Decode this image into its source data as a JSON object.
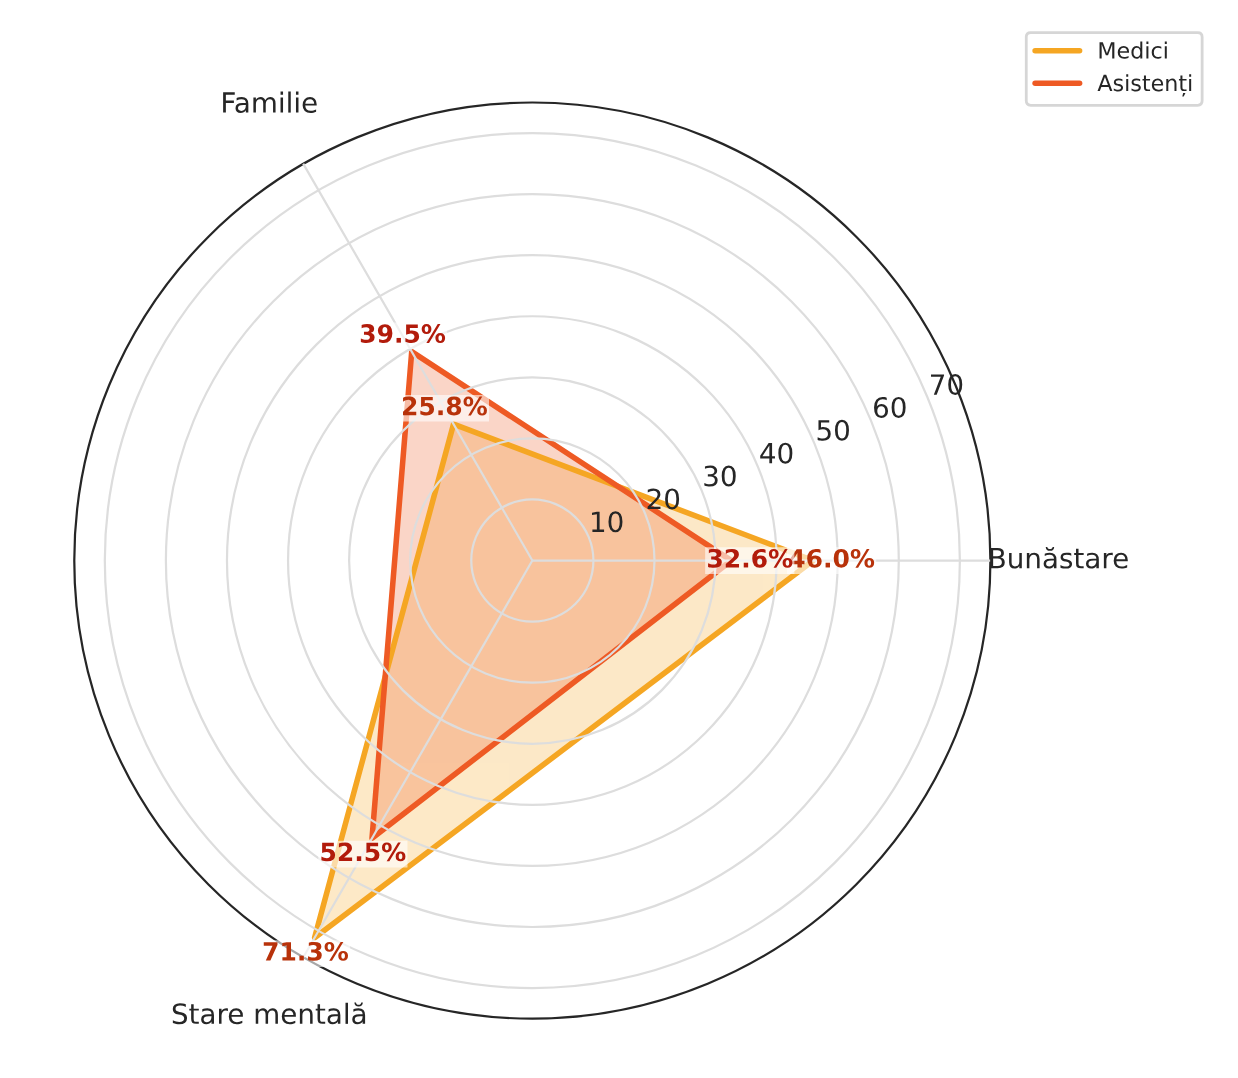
{
  "chart_data": {
    "type": "radar",
    "categories": [
      "Bunăstare",
      "Stare mentală",
      "Familie"
    ],
    "series": [
      {
        "name": "Medici",
        "color": "#f5a623",
        "values": [
          46.0,
          71.3,
          25.8
        ],
        "value_labels": [
          "46.0%",
          "71.3%",
          "25.8%"
        ]
      },
      {
        "name": "Asistenți",
        "color": "#ee5a24",
        "values": [
          32.6,
          52.5,
          39.5
        ],
        "value_labels": [
          "32.6%",
          "52.5%",
          "39.5%"
        ]
      }
    ],
    "ylim": [
      0,
      75
    ],
    "yticks": [
      10,
      20,
      30,
      40,
      50,
      60,
      70
    ],
    "grid": true,
    "legend": "top right"
  }
}
